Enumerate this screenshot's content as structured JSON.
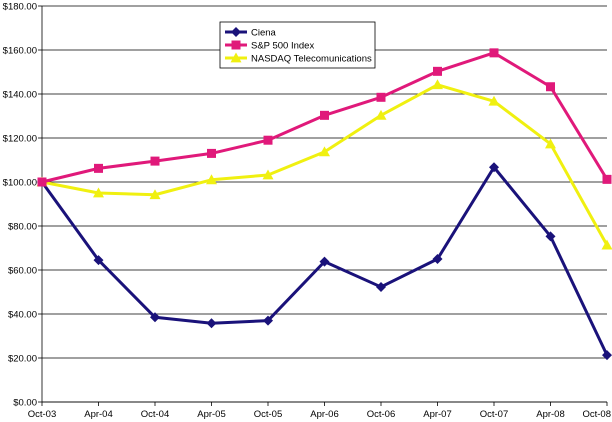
{
  "chart_data": {
    "type": "line",
    "title": "",
    "xlabel": "",
    "ylabel": "",
    "categories": [
      "Oct-03",
      "Apr-04",
      "Oct-04",
      "Apr-05",
      "Oct-05",
      "Apr-06",
      "Oct-06",
      "Apr-07",
      "Oct-07",
      "Apr-08",
      "Oct-08"
    ],
    "ylim": [
      0,
      180
    ],
    "yticks": [
      0,
      20,
      40,
      60,
      80,
      100,
      120,
      140,
      160,
      180
    ],
    "ytick_labels": [
      "$0.00",
      "$20.00",
      "$40.00",
      "$60.00",
      "$80.00",
      "$100.00",
      "$120.00",
      "$140.00",
      "$160.00",
      "$180.00"
    ],
    "grid": "horizontal",
    "legend_position": "top-center",
    "series": [
      {
        "name": "Ciena",
        "color": "#1a127a",
        "marker": "diamond",
        "values": [
          100,
          64.5,
          38.5,
          35.8,
          37,
          63.8,
          52.3,
          65,
          106.7,
          75.3,
          21.3
        ]
      },
      {
        "name": "S&P 500 Index",
        "color": "#e0197a",
        "marker": "square",
        "values": [
          100,
          106.2,
          109.5,
          113,
          119,
          130.3,
          138.5,
          150.3,
          158.7,
          143.3,
          101.2
        ]
      },
      {
        "name": "NASDAQ Telecomunications",
        "color": "#f0f010",
        "marker": "triangle",
        "values": [
          100,
          95,
          94.2,
          101,
          103.2,
          113.7,
          130.3,
          144.2,
          136.7,
          117.3,
          71.3
        ]
      }
    ]
  }
}
